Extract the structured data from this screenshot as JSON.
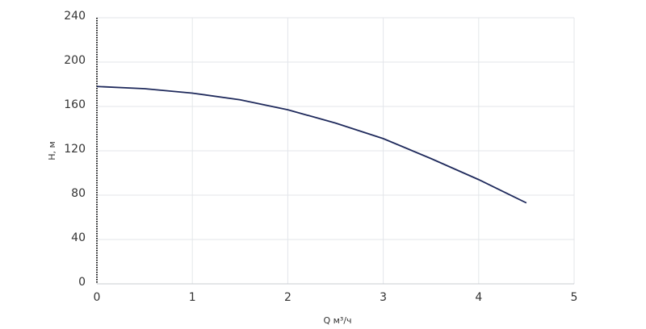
{
  "chart_data": {
    "type": "line",
    "x_label": "Q м³/ч",
    "y_label": "H, м",
    "x": [
      0,
      0.5,
      1,
      1.5,
      2,
      2.5,
      3,
      3.5,
      4,
      4.5
    ],
    "series": [
      {
        "name": "H",
        "color": "#1f2a5c",
        "values": [
          178,
          176,
          172,
          166,
          157,
          145,
          131,
          113,
          94,
          73
        ]
      }
    ],
    "xlim": [
      0,
      5
    ],
    "xticks": [
      0,
      1,
      2,
      3,
      4,
      5
    ],
    "ylim": [
      0,
      240
    ],
    "yticks": [
      0,
      40,
      80,
      120,
      160,
      200,
      240
    ],
    "grid": true
  }
}
